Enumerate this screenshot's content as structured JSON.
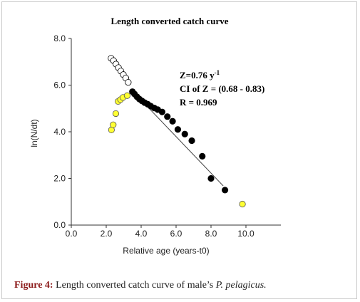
{
  "chart_data": {
    "type": "scatter",
    "title": "Length converted catch curve",
    "xlabel": "Relative age (years-t0)",
    "ylabel": "ln(N/dt)",
    "xlim": [
      0,
      12
    ],
    "ylim": [
      0,
      8
    ],
    "x_ticks": [
      "0.0",
      "2.0",
      "4.0",
      "6.0",
      "8.0",
      "10.0"
    ],
    "y_ticks": [
      "0.0",
      "2.0",
      "4.0",
      "6.0",
      "8.0"
    ],
    "grid": false,
    "annotations": {
      "z_value": "Z=0.76 y",
      "z_exp": "-1",
      "ci": "CI of Z = (0.68 - 0.83)",
      "r": "R = 0.969"
    },
    "series": [
      {
        "style": "open",
        "color": "#ffffff",
        "points": [
          [
            2.28,
            7.15
          ],
          [
            2.42,
            7.05
          ],
          [
            2.56,
            6.9
          ],
          [
            2.7,
            6.75
          ],
          [
            2.84,
            6.6
          ],
          [
            2.98,
            6.45
          ],
          [
            3.12,
            6.3
          ],
          [
            3.26,
            6.12
          ]
        ]
      },
      {
        "style": "yellow",
        "color": "#ffff33",
        "points": [
          [
            2.3,
            4.08
          ],
          [
            2.4,
            4.3
          ],
          [
            2.55,
            4.78
          ],
          [
            2.68,
            5.3
          ],
          [
            2.82,
            5.38
          ],
          [
            2.96,
            5.47
          ],
          [
            3.2,
            5.55
          ],
          [
            9.8,
            0.9
          ]
        ]
      },
      {
        "style": "filled",
        "color": "#000000",
        "points": [
          [
            3.5,
            5.72
          ],
          [
            3.62,
            5.62
          ],
          [
            3.76,
            5.5
          ],
          [
            3.9,
            5.4
          ],
          [
            4.05,
            5.32
          ],
          [
            4.2,
            5.25
          ],
          [
            4.38,
            5.18
          ],
          [
            4.55,
            5.1
          ],
          [
            4.75,
            5.02
          ],
          [
            4.95,
            4.95
          ],
          [
            5.2,
            4.85
          ],
          [
            5.5,
            4.65
          ],
          [
            5.8,
            4.45
          ],
          [
            6.1,
            4.1
          ],
          [
            6.5,
            3.9
          ],
          [
            6.9,
            3.62
          ],
          [
            7.5,
            2.95
          ],
          [
            8.0,
            2.0
          ],
          [
            8.8,
            1.5
          ]
        ]
      }
    ],
    "regression_line": {
      "x": [
        3.5,
        8.7
      ],
      "y": [
        5.75,
        1.68
      ]
    }
  },
  "caption": {
    "label": "Figure 4:",
    "text_before": "Length converted catch curve of male’s",
    "species": "P. pelagicus."
  }
}
